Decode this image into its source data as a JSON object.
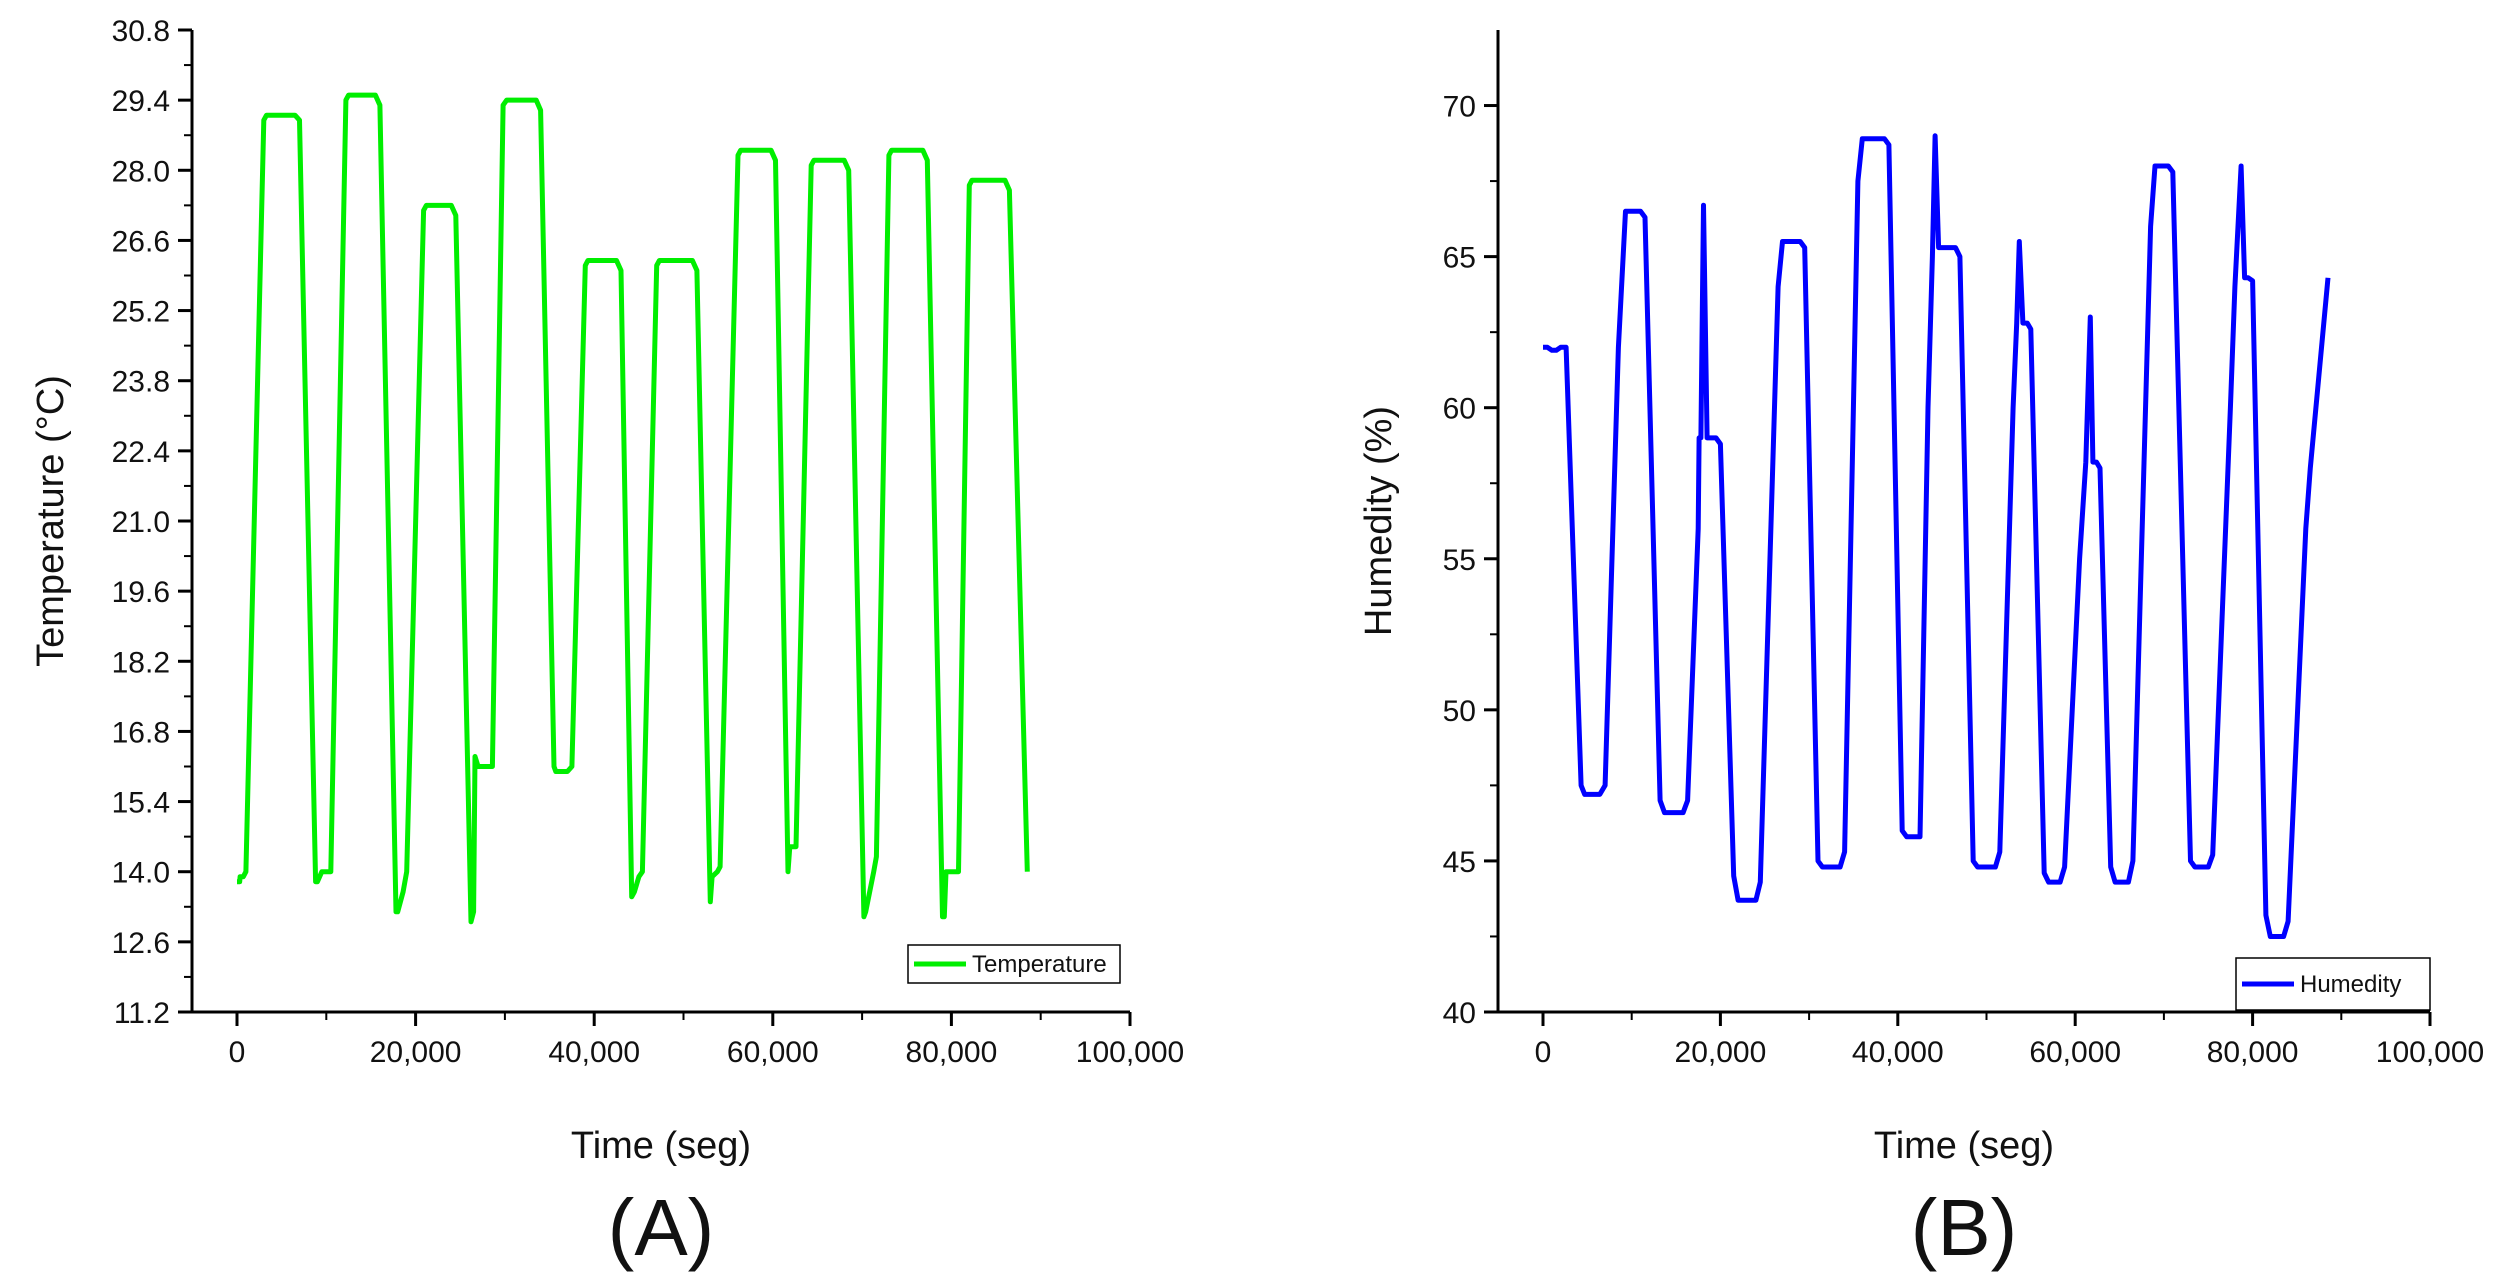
{
  "chart_data": [
    {
      "type": "line",
      "panel_label": "(A)",
      "title": "",
      "xlabel": "Time (seg)",
      "ylabel": "Temperature (°C)",
      "xlim": [
        0,
        100000
      ],
      "ylim": [
        11.2,
        30.8
      ],
      "x_ticks": [
        0,
        20000,
        40000,
        60000,
        80000,
        100000
      ],
      "x_tick_labels": [
        "0",
        "20,000",
        "40,000",
        "60,000",
        "80,000",
        "100,000"
      ],
      "y_ticks": [
        11.2,
        12.6,
        14.0,
        15.4,
        16.8,
        18.2,
        19.6,
        21.0,
        22.4,
        23.8,
        25.2,
        26.6,
        28.0,
        29.4,
        30.8
      ],
      "y_tick_labels": [
        "11.2",
        "12.6",
        "14.0",
        "15.4",
        "16.8",
        "18.2",
        "19.6",
        "21.0",
        "22.4",
        "23.8",
        "25.2",
        "26.6",
        "28.0",
        "29.4",
        "30.8"
      ],
      "legend": "bottom-right",
      "grid": false,
      "series": [
        {
          "name": "Temperature",
          "color": "#00ee00",
          "x": [
            0,
            300,
            350,
            700,
            1000,
            3000,
            3300,
            6500,
            7000,
            8800,
            9000,
            9500,
            10000,
            10500,
            12200,
            12500,
            15500,
            16000,
            17800,
            18000,
            18600,
            19000,
            20900,
            21200,
            24000,
            24500,
            26200,
            26500,
            26650,
            27000,
            28000,
            28600,
            29800,
            30200,
            33500,
            34000,
            35500,
            35700,
            37000,
            37500,
            39000,
            39300,
            42500,
            43000,
            44200,
            44500,
            45000,
            45400,
            47000,
            47300,
            51000,
            51500,
            53000,
            53200,
            53800,
            54100,
            56100,
            56400,
            59800,
            60300,
            61700,
            61900,
            62300,
            62600,
            64300,
            64600,
            68000,
            68500,
            70200,
            70400,
            71300,
            71600,
            73000,
            73300,
            76800,
            77300,
            79000,
            79200,
            79400,
            79700,
            80500,
            80800,
            82000,
            82300,
            86000,
            86500,
            88500
          ],
          "y": [
            13.8,
            13.8,
            13.9,
            13.9,
            14.0,
            29.0,
            29.1,
            29.1,
            29.0,
            13.8,
            13.8,
            14.0,
            14.0,
            14.0,
            29.4,
            29.5,
            29.5,
            29.3,
            13.2,
            13.2,
            13.6,
            14.0,
            27.2,
            27.3,
            27.3,
            27.1,
            13.0,
            13.2,
            16.3,
            16.1,
            16.1,
            16.1,
            29.3,
            29.4,
            29.4,
            29.2,
            16.1,
            16.0,
            16.0,
            16.1,
            26.1,
            26.2,
            26.2,
            26.0,
            13.5,
            13.6,
            13.9,
            14.0,
            26.1,
            26.2,
            26.2,
            26.0,
            13.4,
            13.9,
            14.0,
            14.1,
            28.3,
            28.4,
            28.4,
            28.2,
            14.0,
            14.5,
            14.5,
            14.5,
            28.1,
            28.2,
            28.2,
            28.0,
            13.1,
            13.2,
            14.0,
            14.3,
            28.3,
            28.4,
            28.4,
            28.2,
            13.1,
            13.1,
            14.0,
            14.0,
            14.0,
            14.0,
            27.7,
            27.8,
            27.8,
            27.6,
            14.0
          ]
        }
      ]
    },
    {
      "type": "line",
      "panel_label": "(B)",
      "title": "",
      "xlabel": "Time (seg)",
      "ylabel": "Humedity (%)",
      "xlim": [
        0,
        100000
      ],
      "ylim": [
        40,
        72.5
      ],
      "x_ticks": [
        0,
        20000,
        40000,
        60000,
        80000,
        100000
      ],
      "x_tick_labels": [
        "0",
        "20,000",
        "40,000",
        "60,000",
        "80,000",
        "100,000"
      ],
      "y_ticks": [
        40,
        45,
        50,
        55,
        60,
        65,
        70
      ],
      "y_tick_labels": [
        "40",
        "45",
        "50",
        "55",
        "60",
        "65",
        "70"
      ],
      "legend": "bottom-right",
      "grid": false,
      "series": [
        {
          "name": "Humedity",
          "color": "#0000ff",
          "x": [
            0,
            500,
            1000,
            1500,
            2000,
            2600,
            4300,
            4700,
            6400,
            7000,
            8500,
            9300,
            11000,
            11500,
            13200,
            13700,
            15800,
            16300,
            17500,
            17600,
            17800,
            18100,
            18500,
            19000,
            19500,
            20000,
            21500,
            22000,
            24000,
            24500,
            26500,
            27000,
            29000,
            29500,
            31000,
            31500,
            33500,
            34000,
            35500,
            36000,
            38500,
            39000,
            40500,
            41000,
            42500,
            43400,
            43900,
            44200,
            44600,
            45000,
            46500,
            47000,
            48500,
            49000,
            51000,
            51500,
            53000,
            53400,
            53700,
            54100,
            54600,
            55000,
            56500,
            57000,
            58300,
            58800,
            60500,
            61200,
            61700,
            62000,
            62400,
            62800,
            64000,
            64500,
            66000,
            66500,
            68500,
            69000,
            70500,
            71000,
            73000,
            73500,
            75000,
            75500,
            77500,
            78000,
            78700,
            79100,
            79500,
            80000,
            81500,
            82000,
            83500,
            84000,
            86000,
            86500,
            88500
          ],
          "y": [
            62.0,
            62.0,
            61.9,
            61.9,
            62.0,
            62.0,
            47.5,
            47.2,
            47.2,
            47.5,
            62.0,
            66.5,
            66.5,
            66.3,
            47.0,
            46.6,
            46.6,
            47.0,
            56.0,
            59.0,
            59.0,
            66.7,
            59.0,
            59.0,
            59.0,
            58.8,
            44.5,
            43.7,
            43.7,
            44.3,
            64.0,
            65.5,
            65.5,
            65.3,
            45.0,
            44.8,
            44.8,
            45.3,
            67.5,
            68.9,
            68.9,
            68.7,
            46.0,
            45.8,
            45.8,
            60.0,
            65.0,
            69.0,
            65.3,
            65.3,
            65.3,
            65.0,
            45.0,
            44.8,
            44.8,
            45.3,
            60.0,
            62.8,
            65.5,
            62.8,
            62.8,
            62.6,
            44.6,
            44.3,
            44.3,
            44.8,
            55.0,
            58.2,
            63.0,
            58.2,
            58.2,
            58.0,
            44.8,
            44.3,
            44.3,
            45.0,
            66.0,
            68.0,
            68.0,
            67.8,
            45.0,
            44.8,
            44.8,
            45.2,
            60.0,
            64.0,
            68.0,
            64.3,
            64.3,
            64.2,
            43.2,
            42.5,
            42.5,
            43.0,
            56.0,
            58.0,
            64.3
          ]
        }
      ]
    }
  ]
}
